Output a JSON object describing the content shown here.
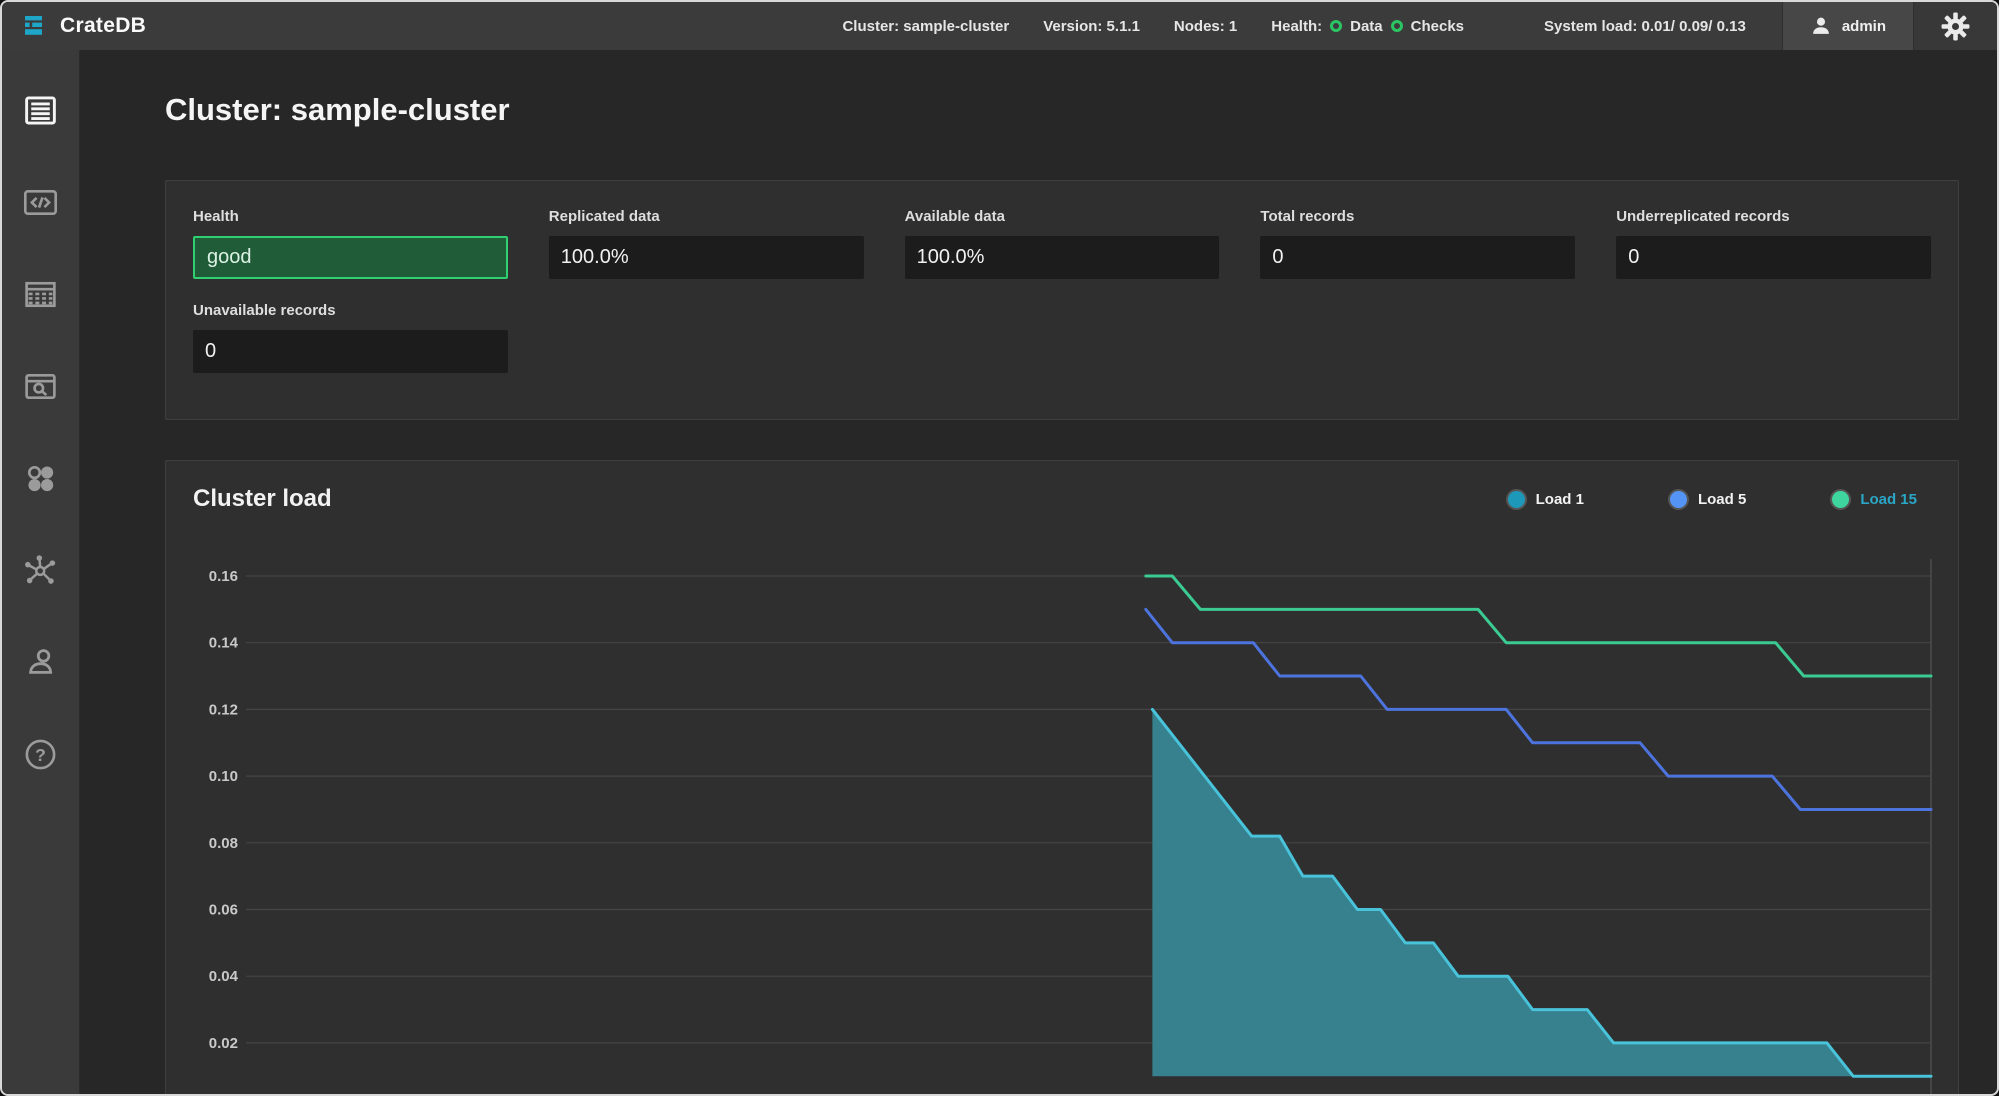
{
  "header": {
    "brand": "CrateDB",
    "items": [
      "Cluster: sample-cluster",
      "Version: 5.1.1",
      "Nodes: 1"
    ],
    "health_label": "Health:",
    "health_items": [
      "Data",
      "Checks"
    ],
    "system_load": "System load: 0.01/ 0.09/ 0.13",
    "user": "admin"
  },
  "sidebar": {
    "items": [
      "overview",
      "sql-console",
      "tables",
      "views",
      "shards",
      "cluster",
      "privileges",
      "help"
    ],
    "active": "overview"
  },
  "page": {
    "title": "Cluster: sample-cluster"
  },
  "overview": {
    "fields": [
      {
        "label": "Health",
        "value": "good",
        "status": "good"
      },
      {
        "label": "Replicated data",
        "value": "100.0%"
      },
      {
        "label": "Available data",
        "value": "100.0%"
      },
      {
        "label": "Total records",
        "value": "0"
      },
      {
        "label": "Underreplicated records",
        "value": "0"
      },
      {
        "label": "Unavailable records",
        "value": "0"
      }
    ]
  },
  "chart_data": {
    "type": "area",
    "title": "Cluster load",
    "xlabel": "",
    "ylabel": "",
    "grid": true,
    "legend_position": "top-right",
    "xlim": [
      0,
      100
    ],
    "ylim": [
      0.01,
      0.168
    ],
    "baseline": 0.01,
    "yticks": [
      {
        "label": "0.16",
        "value": 0.16
      },
      {
        "label": "0.14",
        "value": 0.14
      },
      {
        "label": "0.12",
        "value": 0.12
      },
      {
        "label": "0.10",
        "value": 0.1
      },
      {
        "label": "0.08",
        "value": 0.08
      },
      {
        "label": "0.06",
        "value": 0.06
      },
      {
        "label": "0.04",
        "value": 0.04
      },
      {
        "label": "0.02",
        "value": 0.02
      }
    ],
    "legend": [
      {
        "name": "Load 1",
        "dot": "#1e98b9",
        "label_color": "#f2f2f2"
      },
      {
        "name": "Load 5",
        "dot": "#5494f5",
        "label_color": "#f2f2f2"
      },
      {
        "name": "Load 15",
        "dot": "#3ed69e",
        "label_color": "#2aa6c6"
      }
    ],
    "series": [
      {
        "name": "Load 1",
        "type": "area",
        "color": "#49c3da",
        "fill": "#37818f",
        "points": [
          [
            52.9,
            0.12
          ],
          [
            58.9,
            0.082
          ],
          [
            60.6,
            0.082
          ],
          [
            62.0,
            0.07
          ],
          [
            63.8,
            0.07
          ],
          [
            65.3,
            0.06
          ],
          [
            66.7,
            0.06
          ],
          [
            68.2,
            0.05
          ],
          [
            69.9,
            0.05
          ],
          [
            71.4,
            0.04
          ],
          [
            74.4,
            0.04
          ],
          [
            75.9,
            0.03
          ],
          [
            79.2,
            0.03
          ],
          [
            80.8,
            0.02
          ],
          [
            93.7,
            0.02
          ],
          [
            95.3,
            0.01
          ],
          [
            100,
            0.01
          ]
        ]
      },
      {
        "name": "Load 5",
        "type": "line",
        "color": "#4d74de",
        "points": [
          [
            52.5,
            0.15
          ],
          [
            54.1,
            0.14
          ],
          [
            59.0,
            0.14
          ],
          [
            60.6,
            0.13
          ],
          [
            65.5,
            0.13
          ],
          [
            67.1,
            0.12
          ],
          [
            74.3,
            0.12
          ],
          [
            75.9,
            0.11
          ],
          [
            82.4,
            0.11
          ],
          [
            84.1,
            0.1
          ],
          [
            90.4,
            0.1
          ],
          [
            92.1,
            0.09
          ],
          [
            100,
            0.09
          ]
        ]
      },
      {
        "name": "Load 15",
        "type": "line",
        "color": "#3bcb92",
        "points": [
          [
            52.5,
            0.16
          ],
          [
            54.1,
            0.16
          ],
          [
            55.8,
            0.15
          ],
          [
            72.6,
            0.15
          ],
          [
            74.3,
            0.14
          ],
          [
            90.6,
            0.14
          ],
          [
            92.3,
            0.13
          ],
          [
            100,
            0.13
          ]
        ]
      }
    ]
  },
  "colors": {
    "accent_teal": "#1da6c7",
    "health_green": "#2bc563",
    "good_bg": "#1f5c37",
    "good_border": "#2fd072",
    "grid": "#454545"
  }
}
